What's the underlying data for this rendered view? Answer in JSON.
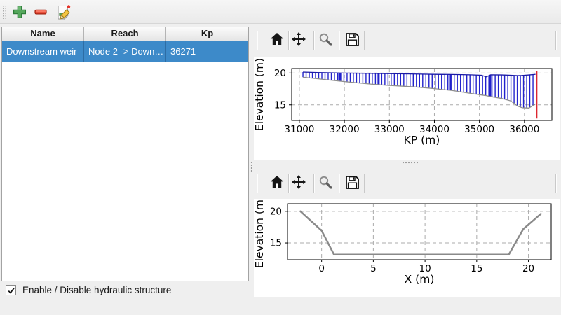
{
  "main_toolbar": {
    "buttons": [
      {
        "id": "add",
        "icon": "plus-icon"
      },
      {
        "id": "remove",
        "icon": "minus-icon"
      },
      {
        "id": "edit",
        "icon": "edit-icon"
      }
    ]
  },
  "table": {
    "columns": [
      "Name",
      "Reach",
      "Kp"
    ],
    "rows": [
      {
        "name": "Downstream weir",
        "reach": "Node 2 -> Down…",
        "kp": "36271"
      }
    ],
    "selected_row_index": 0,
    "selection_color": "#3d8ac9"
  },
  "enable_checkbox": {
    "label": "Enable / Disable hydraulic structure",
    "checked": true
  },
  "chart_toolbar": {
    "buttons": [
      "home",
      "pan",
      "zoom",
      "save"
    ]
  },
  "chart_data": [
    {
      "type": "section-lines",
      "name": "longitudinal-profile",
      "xlabel": "KP (m)",
      "ylabel": "Elevation (m)",
      "xlim": [
        30830,
        36610
      ],
      "ylim": [
        12.55,
        20.7
      ],
      "xticks": [
        31000,
        32000,
        33000,
        34000,
        35000,
        36000
      ],
      "yticks": [
        15,
        20
      ],
      "grid": true,
      "section_spacing_m": 70,
      "kp_start": 31080,
      "kp_end": 36245,
      "section_color": "#2222cc",
      "top_envelope_color": "#1a1aa6",
      "bottom_envelope_color": "#8f8f8f",
      "envelope": [
        [
          31080,
          19.35,
          20.15
        ],
        [
          31400,
          19.1,
          20.08
        ],
        [
          32000,
          18.65,
          20.0
        ],
        [
          32600,
          18.25,
          19.95
        ],
        [
          33000,
          18.05,
          19.9
        ],
        [
          33600,
          17.8,
          19.85
        ],
        [
          34000,
          17.55,
          19.8
        ],
        [
          34400,
          17.25,
          19.78
        ],
        [
          34800,
          16.8,
          19.72
        ],
        [
          35050,
          16.55,
          19.65
        ],
        [
          35150,
          16.45,
          19.4
        ],
        [
          35250,
          16.3,
          19.72
        ],
        [
          35500,
          16.0,
          19.7
        ],
        [
          35700,
          15.6,
          19.65
        ],
        [
          35850,
          14.8,
          19.6
        ],
        [
          35950,
          14.55,
          19.62
        ],
        [
          36100,
          14.5,
          19.7
        ],
        [
          36245,
          15.15,
          19.8
        ]
      ],
      "bold_section_kps": [
        31890,
        32760,
        34350,
        35240
      ],
      "marker": {
        "kp": 36271,
        "color": "#dc2630",
        "y0": 12.85,
        "y1": 20.35
      }
    },
    {
      "type": "line",
      "name": "cross-section",
      "xlabel": "X (m)",
      "ylabel": "Elevation (m)",
      "xlim": [
        -3.3,
        22.2
      ],
      "ylim": [
        12.35,
        21.2
      ],
      "xticks": [
        0,
        5,
        10,
        15,
        20
      ],
      "yticks": [
        15,
        20
      ],
      "grid": true,
      "line_color": "#8a8a8a",
      "line_width": 2.5,
      "x": [
        -2.05,
        0.0,
        1.2,
        18.1,
        19.5,
        21.2
      ],
      "y": [
        20.0,
        16.95,
        13.15,
        13.15,
        17.2,
        19.6
      ]
    }
  ]
}
